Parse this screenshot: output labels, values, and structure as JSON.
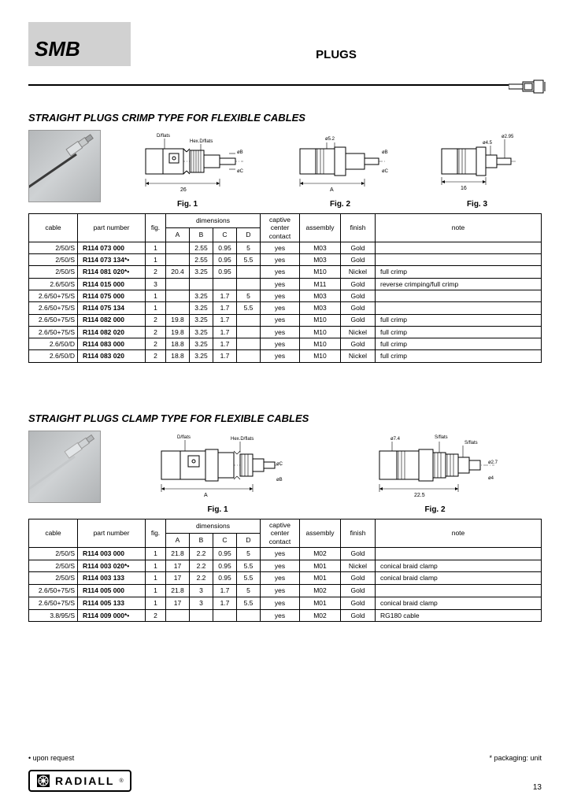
{
  "header": {
    "badge": "SMB",
    "title": "PLUGS"
  },
  "section1": {
    "title": "STRAIGHT PLUGS CRIMP TYPE FOR FLEXIBLE CABLES",
    "figs": [
      "Fig. 1",
      "Fig. 2",
      "Fig. 3"
    ],
    "fig_dim_labels": {
      "fig1": {
        "dflats": "D/flats",
        "hex": "Hex.D/flats",
        "b": "øB",
        "c": "øC",
        "len": "26"
      },
      "fig2": {
        "d52": "ø5.2",
        "b": "øB",
        "c": "øC",
        "a": "A"
      },
      "fig3": {
        "d295": "ø2.95",
        "d45": "ø4.5",
        "len": "16"
      }
    },
    "columns": {
      "cable": "cable",
      "part": "part number",
      "fig": "fig.",
      "dims": "dimensions",
      "a": "A",
      "b": "B",
      "c": "C",
      "d": "D",
      "captive": "captive center contact",
      "assembly": "assembly",
      "finish": "finish",
      "note": "note"
    },
    "rows": [
      {
        "cable": "2/50/S",
        "part": "R114 073 000",
        "fig": "1",
        "A": "",
        "B": "2.55",
        "C": "0.95",
        "D": "5",
        "captive": "yes",
        "assembly": "M03",
        "finish": "Gold",
        "note": ""
      },
      {
        "cable": "2/50/S",
        "part": "R114 073 134*•",
        "fig": "1",
        "A": "",
        "B": "2.55",
        "C": "0.95",
        "D": "5.5",
        "captive": "yes",
        "assembly": "M03",
        "finish": "Gold",
        "note": ""
      },
      {
        "cable": "2/50/S",
        "part": "R114 081 020*•",
        "fig": "2",
        "A": "20.4",
        "B": "3.25",
        "C": "0.95",
        "D": "",
        "captive": "yes",
        "assembly": "M10",
        "finish": "Nickel",
        "note": "full crimp"
      },
      {
        "cable": "2.6/50/S",
        "part": "R114 015 000",
        "fig": "3",
        "A": "",
        "B": "",
        "C": "",
        "D": "",
        "captive": "yes",
        "assembly": "M11",
        "finish": "Gold",
        "note": "reverse crimping/full crimp"
      },
      {
        "cable": "2.6/50+75/S",
        "part": "R114 075 000",
        "fig": "1",
        "A": "",
        "B": "3.25",
        "C": "1.7",
        "D": "5",
        "captive": "yes",
        "assembly": "M03",
        "finish": "Gold",
        "note": ""
      },
      {
        "cable": "2.6/50+75/S",
        "part": "R114 075 134",
        "fig": "1",
        "A": "",
        "B": "3.25",
        "C": "1.7",
        "D": "5.5",
        "captive": "yes",
        "assembly": "M03",
        "finish": "Gold",
        "note": ""
      },
      {
        "cable": "2.6/50+75/S",
        "part": "R114 082 000",
        "fig": "2",
        "A": "19.8",
        "B": "3.25",
        "C": "1.7",
        "D": "",
        "captive": "yes",
        "assembly": "M10",
        "finish": "Gold",
        "note": "full crimp"
      },
      {
        "cable": "2.6/50+75/S",
        "part": "R114 082 020",
        "fig": "2",
        "A": "19.8",
        "B": "3.25",
        "C": "1.7",
        "D": "",
        "captive": "yes",
        "assembly": "M10",
        "finish": "Nickel",
        "note": "full crimp"
      },
      {
        "cable": "2.6/50/D",
        "part": "R114 083 000",
        "fig": "2",
        "A": "18.8",
        "B": "3.25",
        "C": "1.7",
        "D": "",
        "captive": "yes",
        "assembly": "M10",
        "finish": "Gold",
        "note": "full crimp"
      },
      {
        "cable": "2.6/50/D",
        "part": "R114 083 020",
        "fig": "2",
        "A": "18.8",
        "B": "3.25",
        "C": "1.7",
        "D": "",
        "captive": "yes",
        "assembly": "M10",
        "finish": "Nickel",
        "note": "full crimp"
      }
    ]
  },
  "section2": {
    "title": "STRAIGHT PLUGS CLAMP TYPE FOR FLEXIBLE CABLES",
    "figs": [
      "Fig. 1",
      "Fig. 2"
    ],
    "fig_dim_labels": {
      "fig1": {
        "dflats": "D/flats",
        "hex": "Hex.D/flats",
        "c": "øC",
        "b": "øB",
        "a": "A"
      },
      "fig2": {
        "d74": "ø7.4",
        "sflats": "S/flats",
        "sflats2": "S/flats",
        "d27": "ø2.7",
        "d4": "ø4",
        "len": "22.5"
      }
    },
    "columns": {
      "cable": "cable",
      "part": "part number",
      "fig": "fig.",
      "dims": "dimensions",
      "a": "A",
      "b": "B",
      "c": "C",
      "d": "D",
      "captive": "captive center contact",
      "assembly": "assembly",
      "finish": "finish",
      "note": "note"
    },
    "rows": [
      {
        "cable": "2/50/S",
        "part": "R114 003 000",
        "fig": "1",
        "A": "21.8",
        "B": "2.2",
        "C": "0.95",
        "D": "5",
        "captive": "yes",
        "assembly": "M02",
        "finish": "Gold",
        "note": ""
      },
      {
        "cable": "2/50/S",
        "part": "R114 003 020*•",
        "fig": "1",
        "A": "17",
        "B": "2.2",
        "C": "0.95",
        "D": "5.5",
        "captive": "yes",
        "assembly": "M01",
        "finish": "Nickel",
        "note": "conical braid clamp"
      },
      {
        "cable": "2/50/S",
        "part": "R114 003 133",
        "fig": "1",
        "A": "17",
        "B": "2.2",
        "C": "0.95",
        "D": "5.5",
        "captive": "yes",
        "assembly": "M01",
        "finish": "Gold",
        "note": "conical braid clamp"
      },
      {
        "cable": "2.6/50+75/S",
        "part": "R114 005 000",
        "fig": "1",
        "A": "21.8",
        "B": "3",
        "C": "1.7",
        "D": "5",
        "captive": "yes",
        "assembly": "M02",
        "finish": "Gold",
        "note": ""
      },
      {
        "cable": "2.6/50+75/S",
        "part": "R114 005 133",
        "fig": "1",
        "A": "17",
        "B": "3",
        "C": "1.7",
        "D": "5.5",
        "captive": "yes",
        "assembly": "M01",
        "finish": "Gold",
        "note": "conical braid clamp"
      },
      {
        "cable": "3.8/95/S",
        "part": "R114 009 000*•",
        "fig": "2",
        "A": "",
        "B": "",
        "C": "",
        "D": "",
        "captive": "yes",
        "assembly": "M02",
        "finish": "Gold",
        "note": "RG180 cable"
      }
    ]
  },
  "footnotes": {
    "left": "• upon request",
    "right": "* packaging: unit"
  },
  "footer": {
    "brand": "RADIALL",
    "page": "13"
  }
}
